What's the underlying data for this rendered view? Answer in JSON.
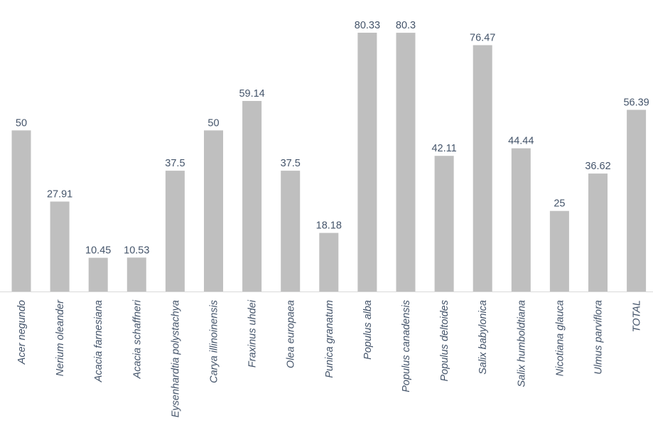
{
  "chart_data": {
    "type": "bar",
    "title": "",
    "xlabel": "",
    "ylabel": "",
    "ylim": [
      0,
      80.33
    ],
    "grid": false,
    "legend": "none",
    "categories": [
      "Acer negundo",
      "Nerium oleander",
      "Acacia farnesiana",
      "Acacia schaffneri",
      "Eysenhardtia polystachya",
      "Carya illinoinensis",
      "Fraxinus uhdei",
      "Olea europaea",
      "Punica granatum",
      "Populus alba",
      "Populus canadensis",
      "Populus deltoides",
      "Salix babylonica",
      "Salix humboldtiana",
      "Nicotiana glauca",
      "Ulmus parviflora",
      "TOTAL"
    ],
    "values": [
      50,
      27.91,
      10.45,
      10.53,
      37.5,
      50,
      59.14,
      37.5,
      18.18,
      80.33,
      80.3,
      42.11,
      76.47,
      44.44,
      25,
      36.62,
      56.39
    ],
    "data_labels": [
      "50",
      "27.91",
      "10.45",
      "10.53",
      "37.5",
      "50",
      "59.14",
      "37.5",
      "18.18",
      "80.33",
      "80.3",
      "42.11",
      "76.47",
      "44.44",
      "25",
      "36.62",
      "56.39"
    ],
    "colors": {
      "bar": "#bfbfbf",
      "text": "#44546a",
      "axis": "#d9d9d9"
    }
  }
}
